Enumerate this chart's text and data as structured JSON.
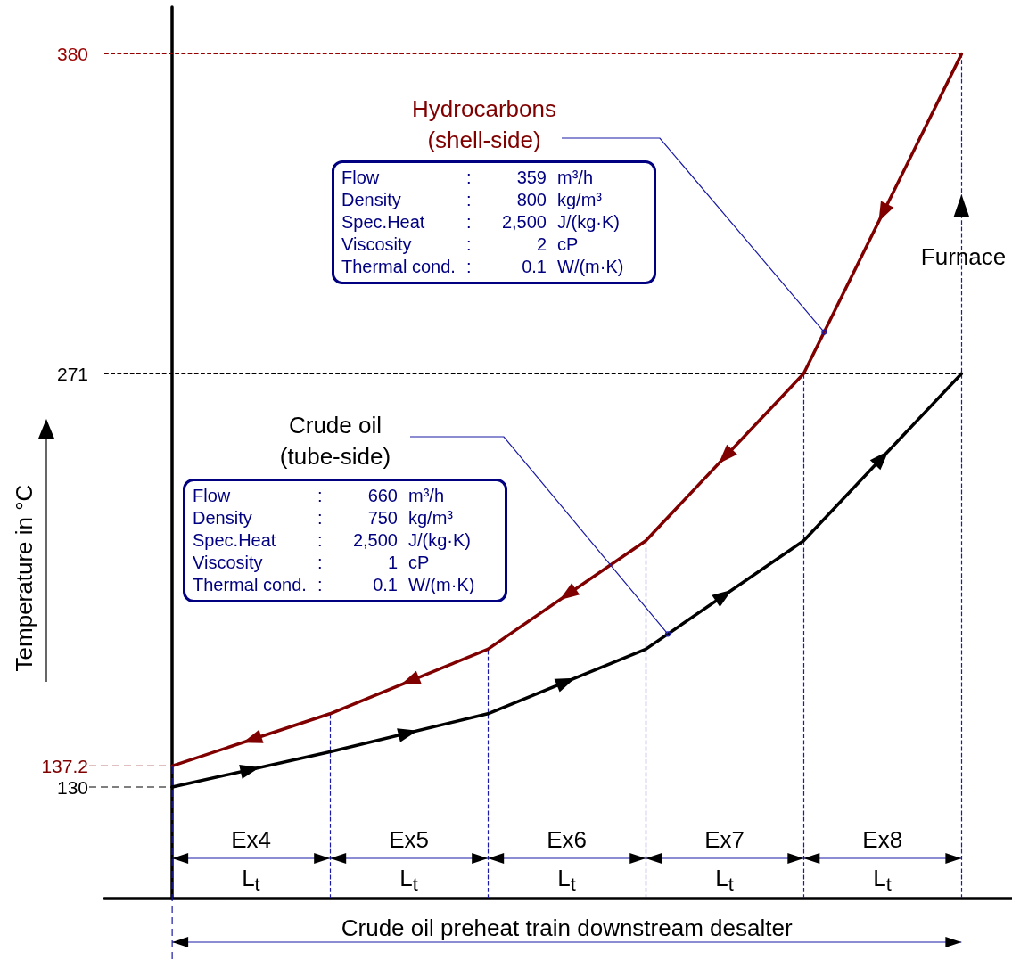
{
  "chart_data": {
    "type": "line",
    "categories": [
      null,
      null,
      null,
      null,
      null,
      null
    ],
    "series": [
      {
        "name": "Hydrocarbons (shell-side)",
        "color": "#800000",
        "values": [
          137.2,
          155,
          177,
          214,
          271,
          380
        ]
      },
      {
        "name": "Crude oil (tube-side)",
        "color": "#000000",
        "values": [
          130,
          142,
          155,
          177,
          214,
          271
        ]
      }
    ],
    "ylabel": "Temperature in °C",
    "xlabel": "Crude oil preheat train downstream desalter",
    "ylim": [
      92,
      396
    ],
    "yticks": [
      130,
      137.2,
      271,
      380
    ],
    "tick_labels": "y",
    "ref_lines": [
      {
        "axis": "y",
        "value": 380,
        "color": "#990000",
        "line_style": "dashed"
      },
      {
        "axis": "y",
        "value": 271,
        "color": "#000000",
        "line_style": "dashed"
      }
    ],
    "annotations": [
      "Flow : 359 m³/h",
      "Density : 800 kg/m³",
      "Spec.Heat : 2,500 J/(kg·K)",
      "Viscosity : 2 cP",
      "Thermal cond. : 0.1 W/(m·K)",
      "Flow : 660 m³/h",
      "Density : 750 kg/m³",
      "Spec.Heat : 2,500 J/(kg·K)",
      "Viscosity : 1 cP",
      "Thermal cond. : 0.1 W/(m·K)",
      "Ex4",
      "Ex5",
      "Ex6",
      "Ex7",
      "Ex8",
      "L$_{t}$",
      "L$_{t}$",
      "L$_{t}$",
      "L$_{t}$",
      "L$_{t}$",
      "Furnace"
    ],
    "marker": "none",
    "line_style": "solid",
    "grid": false,
    "legend": false
  }
}
